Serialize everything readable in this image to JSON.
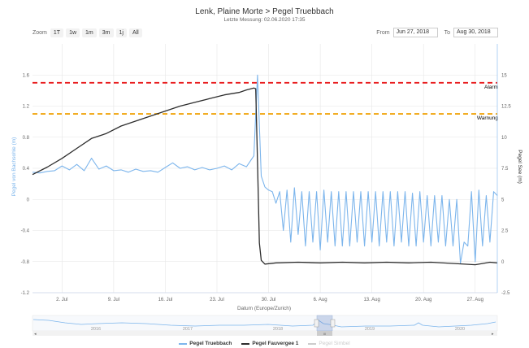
{
  "header": {
    "title": "Lenk, Plaine Morte > Pegel Truebbach",
    "subtitle": "Letzte Messung: 02.06.2020 17:35"
  },
  "zoom": {
    "label": "Zoom",
    "buttons": [
      "1T",
      "1w",
      "1m",
      "3m",
      "1j",
      "All"
    ]
  },
  "range": {
    "from_label": "From",
    "from_value": "Jun 27, 2018",
    "to_label": "To",
    "to_value": "Aug 30, 2018"
  },
  "navigator": {
    "years": [
      "2016",
      "2017",
      "2018",
      "2019",
      "2020"
    ],
    "handle_label": "III"
  },
  "colors": {
    "black_series": "#2d2d2d",
    "blue_series": "#7cb5ec",
    "alarm": "#e8191b",
    "warning": "#f0a30a",
    "grid": "#e6e6e6",
    "left_axis_text": "#7cb5ec"
  },
  "chart_data": {
    "type": "line",
    "xlabel": "Datum (Europe/Zurich)",
    "y_left_label": "Pegel von Bachsohle (m)",
    "y_right_label": "Pegel See (m)",
    "x_range": [
      "2018-06-28",
      "2018-08-30"
    ],
    "y_left_range": [
      -1.2,
      2.0
    ],
    "y_left_ticks": [
      "1.6",
      "1.2",
      "0.8",
      "0.4",
      "0",
      "-0.4",
      "-0.8",
      "-1.2"
    ],
    "y_right_range": [
      -2.5,
      17.5
    ],
    "y_right_ticks": [
      "15",
      "12.5",
      "10",
      "7.5",
      "5",
      "2.5",
      "0",
      "-2.5"
    ],
    "x_ticks": [
      "2. Jul",
      "9. Jul",
      "16. Jul",
      "23. Jul",
      "30. Jul",
      "6. Aug",
      "13. Aug",
      "20. Aug",
      "27. Aug"
    ],
    "grid": true,
    "thresholds": [
      {
        "name": "Alarm",
        "value": 1.5
      },
      {
        "name": "Warnung",
        "value": 1.1
      }
    ],
    "series": [
      {
        "name": "Pegel Truebbach",
        "axis": "left",
        "points": [
          [
            "2018-06-28",
            0.35
          ],
          [
            "2018-06-29",
            0.34
          ],
          [
            "2018-06-30",
            0.36
          ],
          [
            "2018-07-01",
            0.37
          ],
          [
            "2018-07-02",
            0.43
          ],
          [
            "2018-07-03",
            0.38
          ],
          [
            "2018-07-04",
            0.45
          ],
          [
            "2018-07-05",
            0.37
          ],
          [
            "2018-07-06",
            0.53
          ],
          [
            "2018-07-07",
            0.39
          ],
          [
            "2018-07-08",
            0.43
          ],
          [
            "2018-07-09",
            0.37
          ],
          [
            "2018-07-10",
            0.38
          ],
          [
            "2018-07-11",
            0.35
          ],
          [
            "2018-07-12",
            0.39
          ],
          [
            "2018-07-13",
            0.36
          ],
          [
            "2018-07-14",
            0.37
          ],
          [
            "2018-07-15",
            0.35
          ],
          [
            "2018-07-16",
            0.41
          ],
          [
            "2018-07-17",
            0.47
          ],
          [
            "2018-07-18",
            0.4
          ],
          [
            "2018-07-19",
            0.42
          ],
          [
            "2018-07-20",
            0.38
          ],
          [
            "2018-07-21",
            0.41
          ],
          [
            "2018-07-22",
            0.38
          ],
          [
            "2018-07-23",
            0.4
          ],
          [
            "2018-07-24",
            0.43
          ],
          [
            "2018-07-25",
            0.38
          ],
          [
            "2018-07-26",
            0.46
          ],
          [
            "2018-07-27",
            0.42
          ],
          [
            "2018-07-28",
            0.56
          ],
          [
            "2018-07-28T12:00",
            1.6
          ],
          [
            "2018-07-29",
            0.3
          ],
          [
            "2018-07-29T12:00",
            0.16
          ],
          [
            "2018-07-30",
            0.12
          ],
          [
            "2018-07-30T12:00",
            0.1
          ],
          [
            "2018-07-31",
            -0.05
          ],
          [
            "2018-07-31T12:00",
            0.1
          ],
          [
            "2018-08-01",
            -0.4
          ],
          [
            "2018-08-01T12:00",
            0.12
          ],
          [
            "2018-08-02",
            -0.55
          ],
          [
            "2018-08-02T12:00",
            0.15
          ],
          [
            "2018-08-03",
            -0.45
          ],
          [
            "2018-08-03T12:00",
            0.1
          ],
          [
            "2018-08-04",
            -0.6
          ],
          [
            "2018-08-04T12:00",
            0.1
          ],
          [
            "2018-08-05",
            -0.55
          ],
          [
            "2018-08-05T12:00",
            0.1
          ],
          [
            "2018-08-06",
            -0.65
          ],
          [
            "2018-08-06T12:00",
            0.12
          ],
          [
            "2018-08-07",
            -0.55
          ],
          [
            "2018-08-07T12:00",
            0.1
          ],
          [
            "2018-08-08",
            -0.6
          ],
          [
            "2018-08-08T12:00",
            0.1
          ],
          [
            "2018-08-09",
            -0.6
          ],
          [
            "2018-08-09T12:00",
            0.1
          ],
          [
            "2018-08-10",
            -0.6
          ],
          [
            "2018-08-10T12:00",
            0.1
          ],
          [
            "2018-08-11",
            -0.55
          ],
          [
            "2018-08-11T12:00",
            0.1
          ],
          [
            "2018-08-12",
            -0.6
          ],
          [
            "2018-08-12T12:00",
            0.1
          ],
          [
            "2018-08-13",
            -0.55
          ],
          [
            "2018-08-13T12:00",
            0.1
          ],
          [
            "2018-08-14",
            -0.6
          ],
          [
            "2018-08-14T12:00",
            0.1
          ],
          [
            "2018-08-15",
            -0.55
          ],
          [
            "2018-08-15T12:00",
            0.1
          ],
          [
            "2018-08-16",
            -0.6
          ],
          [
            "2018-08-16T12:00",
            0.1
          ],
          [
            "2018-08-17",
            -0.55
          ],
          [
            "2018-08-17T12:00",
            0.1
          ],
          [
            "2018-08-18",
            -0.6
          ],
          [
            "2018-08-18T12:00",
            0.08
          ],
          [
            "2018-08-19",
            -0.6
          ],
          [
            "2018-08-19T12:00",
            0.1
          ],
          [
            "2018-08-20",
            -0.55
          ],
          [
            "2018-08-20T12:00",
            0.05
          ],
          [
            "2018-08-21",
            -0.6
          ],
          [
            "2018-08-21T12:00",
            0.05
          ],
          [
            "2018-08-22",
            -0.55
          ],
          [
            "2018-08-22T12:00",
            0.05
          ],
          [
            "2018-08-23",
            -0.6
          ],
          [
            "2018-08-23T12:00",
            0.0
          ],
          [
            "2018-08-24",
            -0.6
          ],
          [
            "2018-08-24T12:00",
            0.0
          ],
          [
            "2018-08-25",
            -0.82
          ],
          [
            "2018-08-25T12:00",
            -0.55
          ],
          [
            "2018-08-26",
            -0.6
          ],
          [
            "2018-08-26T12:00",
            0.1
          ],
          [
            "2018-08-27",
            -0.8
          ],
          [
            "2018-08-27T12:00",
            0.12
          ],
          [
            "2018-08-28",
            -0.6
          ],
          [
            "2018-08-28T12:00",
            0.05
          ],
          [
            "2018-08-29",
            -0.55
          ],
          [
            "2018-08-29T12:00",
            0.1
          ],
          [
            "2018-08-30",
            0.05
          ]
        ]
      },
      {
        "name": "Pegel Fauvergee 1",
        "axis": "right",
        "points": [
          [
            "2018-06-28",
            7.0
          ],
          [
            "2018-06-30",
            7.6
          ],
          [
            "2018-07-02",
            8.3
          ],
          [
            "2018-07-04",
            9.1
          ],
          [
            "2018-07-06",
            9.9
          ],
          [
            "2018-07-08",
            10.3
          ],
          [
            "2018-07-10",
            10.9
          ],
          [
            "2018-07-12",
            11.3
          ],
          [
            "2018-07-14",
            11.7
          ],
          [
            "2018-07-16",
            12.1
          ],
          [
            "2018-07-18",
            12.5
          ],
          [
            "2018-07-20",
            12.8
          ],
          [
            "2018-07-22",
            13.1
          ],
          [
            "2018-07-24",
            13.4
          ],
          [
            "2018-07-26",
            13.6
          ],
          [
            "2018-07-27",
            13.8
          ],
          [
            "2018-07-28",
            13.95
          ],
          [
            "2018-07-28T06:00",
            13.9
          ],
          [
            "2018-07-28T12:00",
            8.0
          ],
          [
            "2018-07-28T18:00",
            1.5
          ],
          [
            "2018-07-29",
            0.1
          ],
          [
            "2018-07-29T12:00",
            -0.2
          ],
          [
            "2018-07-31",
            -0.1
          ],
          [
            "2018-08-03",
            -0.05
          ],
          [
            "2018-08-06",
            -0.1
          ],
          [
            "2018-08-09",
            -0.05
          ],
          [
            "2018-08-12",
            -0.1
          ],
          [
            "2018-08-15",
            -0.05
          ],
          [
            "2018-08-18",
            -0.1
          ],
          [
            "2018-08-21",
            -0.05
          ],
          [
            "2018-08-24",
            -0.15
          ],
          [
            "2018-08-27",
            -0.25
          ],
          [
            "2018-08-29",
            -0.05
          ],
          [
            "2018-08-30",
            -0.1
          ]
        ]
      }
    ]
  },
  "legend": [
    {
      "name": "Pegel Truebbach",
      "color": "#7cb5ec"
    },
    {
      "name": "Pegel Fauvergee 1",
      "color": "#2d2d2d"
    },
    {
      "name": "Pegel Simbel",
      "color": "#cccccc"
    }
  ]
}
